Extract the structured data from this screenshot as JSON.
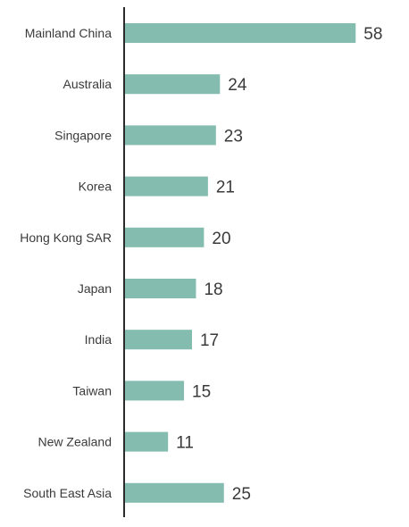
{
  "chart_data": {
    "type": "bar",
    "orientation": "horizontal",
    "categories": [
      "Mainland China",
      "Australia",
      "Singapore",
      "Korea",
      "Hong Kong SAR",
      "Japan",
      "India",
      "Taiwan",
      "New Zealand",
      "South East Asia"
    ],
    "values": [
      58,
      24,
      23,
      21,
      20,
      18,
      17,
      15,
      11,
      25
    ],
    "title": "",
    "xlabel": "",
    "ylabel": "",
    "xlim": [
      0,
      60
    ],
    "grid": false,
    "legend": "none",
    "data_labels": true,
    "bar_color": "#84bcaf",
    "axis_color": "#2b2b2b"
  }
}
